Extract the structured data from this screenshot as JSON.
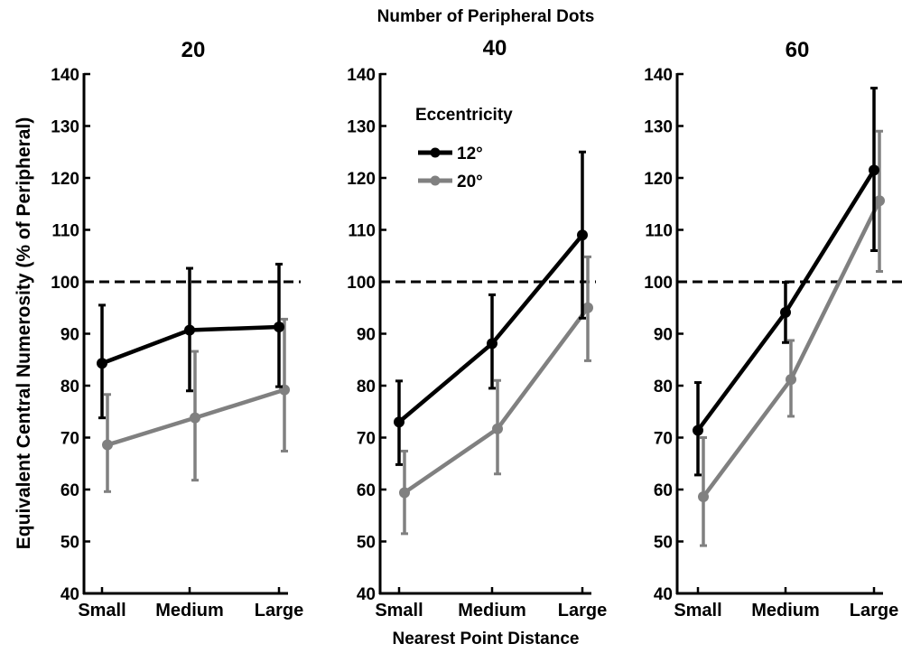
{
  "figure": {
    "top_label": "Number of Peripheral Dots",
    "y_label": "Equivalent Central Numerosity (% of Peripheral)",
    "x_label": "Nearest Point Distance",
    "legend": {
      "title": "Eccentricity",
      "items": [
        {
          "label": "12°",
          "color": "#000000"
        },
        {
          "label": "20°",
          "color": "#808080"
        }
      ]
    }
  },
  "chart_data": [
    {
      "type": "line",
      "title": "20",
      "categories": [
        "Small",
        "Medium",
        "Large"
      ],
      "ylim": [
        40,
        140
      ],
      "yticks": [
        40,
        50,
        60,
        70,
        80,
        90,
        100,
        110,
        120,
        130,
        140
      ],
      "reference_line": 100,
      "series": [
        {
          "name": "12°",
          "color": "#000000",
          "values": [
            84.3,
            90.7,
            91.3
          ],
          "err_low": [
            73.8,
            79.0,
            79.8
          ],
          "err_high": [
            95.5,
            102.6,
            103.4
          ]
        },
        {
          "name": "20°",
          "color": "#808080",
          "values": [
            68.6,
            73.8,
            79.2
          ],
          "err_low": [
            59.6,
            61.8,
            67.4
          ],
          "err_high": [
            78.3,
            86.6,
            92.8
          ]
        }
      ]
    },
    {
      "type": "line",
      "title": "40",
      "categories": [
        "Small",
        "Medium",
        "Large"
      ],
      "ylim": [
        40,
        140
      ],
      "yticks": [
        40,
        50,
        60,
        70,
        80,
        90,
        100,
        110,
        120,
        130,
        140
      ],
      "reference_line": 100,
      "series": [
        {
          "name": "12°",
          "color": "#000000",
          "values": [
            73.0,
            88.1,
            109.0
          ],
          "err_low": [
            64.8,
            79.5,
            93.0
          ],
          "err_high": [
            80.9,
            97.5,
            125.0
          ]
        },
        {
          "name": "20°",
          "color": "#808080",
          "values": [
            59.4,
            71.7,
            95.0
          ],
          "err_low": [
            51.5,
            63.0,
            84.8
          ],
          "err_high": [
            67.4,
            81.0,
            104.8
          ]
        }
      ]
    },
    {
      "type": "line",
      "title": "60",
      "categories": [
        "Small",
        "Medium",
        "Large"
      ],
      "ylim": [
        40,
        140
      ],
      "yticks": [
        40,
        50,
        60,
        70,
        80,
        90,
        100,
        110,
        120,
        130,
        140
      ],
      "reference_line": 100,
      "series": [
        {
          "name": "12°",
          "color": "#000000",
          "values": [
            71.4,
            94.1,
            121.5
          ],
          "err_low": [
            62.8,
            88.3,
            106.0
          ],
          "err_high": [
            80.6,
            99.9,
            137.3
          ]
        },
        {
          "name": "20°",
          "color": "#808080",
          "values": [
            58.6,
            81.2,
            115.6
          ],
          "err_low": [
            49.2,
            74.1,
            102.0
          ],
          "err_high": [
            70.0,
            88.7,
            129.0
          ]
        }
      ]
    }
  ]
}
